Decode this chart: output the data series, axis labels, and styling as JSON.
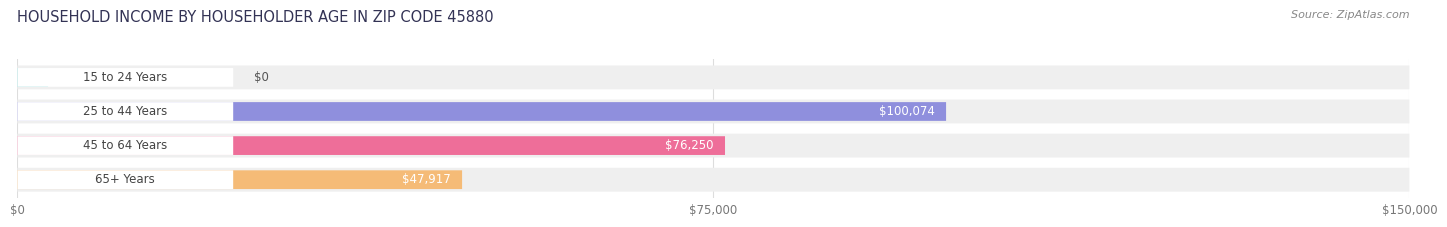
{
  "title": "HOUSEHOLD INCOME BY HOUSEHOLDER AGE IN ZIP CODE 45880",
  "source": "Source: ZipAtlas.com",
  "categories": [
    "15 to 24 Years",
    "25 to 44 Years",
    "45 to 64 Years",
    "65+ Years"
  ],
  "values": [
    0,
    100074,
    76250,
    47917
  ],
  "bar_colors": [
    "#6ecece",
    "#8f8fdd",
    "#ee6e99",
    "#f5bb77"
  ],
  "bar_bg_color": "#efefef",
  "value_labels": [
    "$0",
    "$100,074",
    "$76,250",
    "$47,917"
  ],
  "x_ticks": [
    0,
    75000,
    150000
  ],
  "x_tick_labels": [
    "$0",
    "$75,000",
    "$150,000"
  ],
  "xlim": [
    0,
    150000
  ],
  "figsize": [
    14.06,
    2.33
  ],
  "dpi": 100,
  "label_pill_color": "#ffffff",
  "label_text_color": "#444444",
  "value_inside_color": "#ffffff",
  "value_outside_color": "#555555",
  "grid_color": "#dddddd",
  "title_color": "#333355",
  "source_color": "#888888"
}
